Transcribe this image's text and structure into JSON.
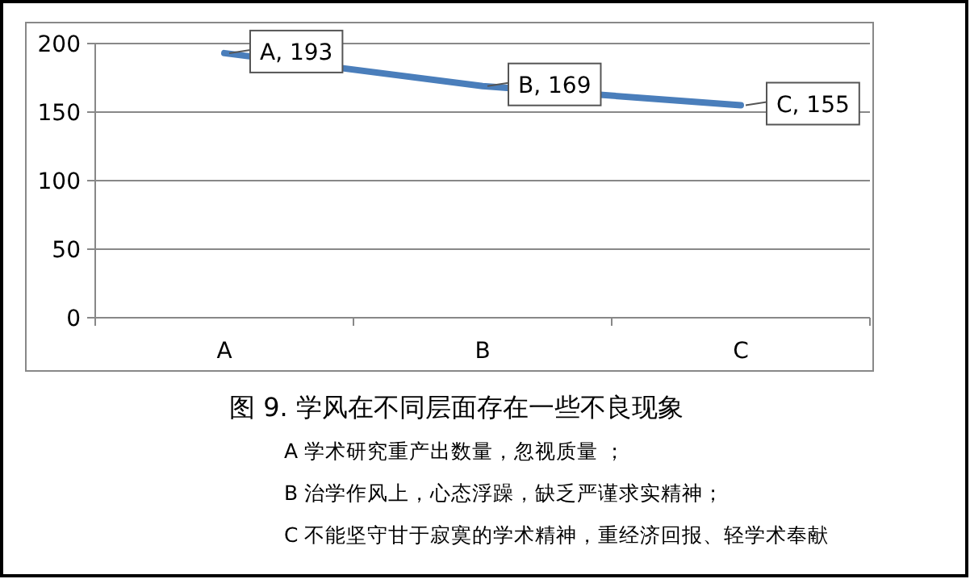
{
  "chart_data": {
    "type": "line",
    "title": "图 9.  学风在不同层面存在一些不良现象",
    "annotations": [
      "A 学术研究重产出数量，忽视质量 ；",
      "B 治学作风上，心态浮躁，缺乏严谨求实精神；",
      "C 不能坚守甘于寂寞的学术精神，重经济回报、轻学术奉献"
    ],
    "categories": [
      "A",
      "B",
      "C"
    ],
    "series": [
      {
        "color": "#4a7ebb",
        "values": [
          193,
          169,
          155
        ],
        "value_labels": [
          "A, 193",
          "B, 169",
          "C, 155"
        ]
      }
    ],
    "ylim": [
      0,
      200
    ],
    "yticks": [
      0,
      50,
      100,
      150,
      200
    ],
    "grid": "y",
    "line_style": "solid"
  }
}
